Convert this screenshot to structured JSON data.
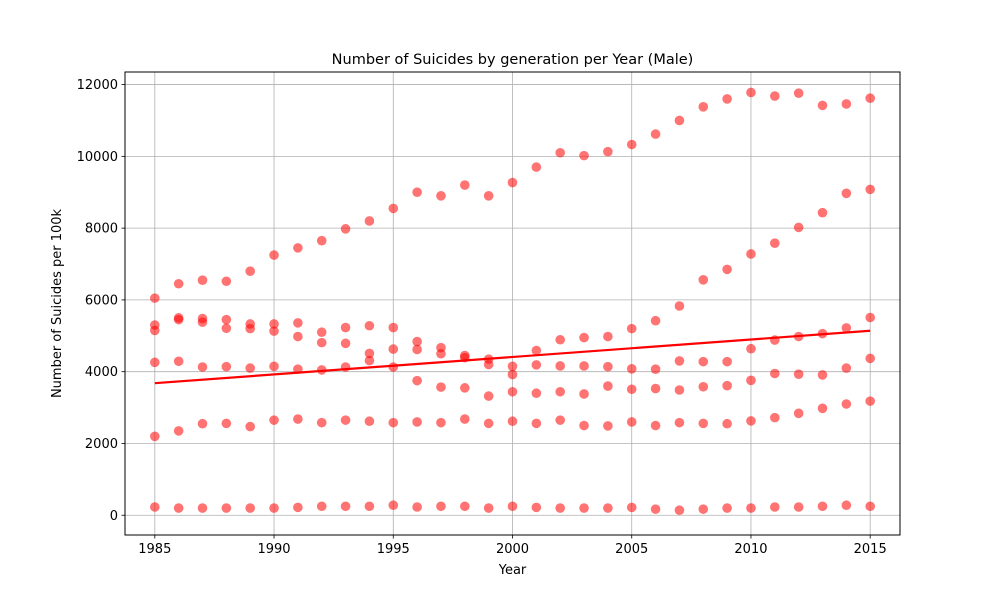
{
  "chart_data": {
    "type": "scatter",
    "title": "Number of Suicides by generation per Year (Male)",
    "xlabel": "Year",
    "ylabel": "Number of Suicides per 100k",
    "xlim": [
      1983.75,
      2016.25
    ],
    "ylim": [
      -550,
      12350
    ],
    "x_ticks": [
      1985,
      1990,
      1995,
      2000,
      2005,
      2010,
      2015
    ],
    "y_ticks": [
      0,
      2000,
      4000,
      6000,
      8000,
      10000,
      12000
    ],
    "grid": true,
    "point_color": "#ff0000",
    "line_color": "#ff0000",
    "x": [
      1985,
      1986,
      1987,
      1988,
      1989,
      1990,
      1991,
      1992,
      1993,
      1994,
      1995,
      1996,
      1997,
      1998,
      1999,
      2000,
      2001,
      2002,
      2003,
      2004,
      2005,
      2006,
      2007,
      2008,
      2009,
      2010,
      2011,
      2012,
      2013,
      2014,
      2015
    ],
    "series": [
      {
        "values": [
          6050,
          6450,
          6550,
          6520,
          6800,
          7250,
          7450,
          7650,
          7980,
          8200,
          8550,
          9000,
          8900,
          9200,
          8900,
          9270,
          9700,
          10100,
          10020,
          10130,
          10330,
          10620,
          11000,
          11380,
          11600,
          11780,
          11680,
          11760,
          11420,
          11460,
          11620
        ]
      },
      {
        "values": [
          5300,
          5500,
          5480,
          5450,
          5330,
          5330,
          5360,
          5100,
          5230,
          5280,
          5230,
          4840,
          4670,
          4450,
          4200,
          3920,
          4590,
          4890,
          4950,
          4980,
          5200,
          5420,
          5830,
          6560,
          6850,
          7280,
          7580,
          8020,
          8430,
          8970,
          9080
        ]
      },
      {
        "values": [
          5150,
          5450,
          5380,
          5210,
          5200,
          5130,
          4980,
          4810,
          4790,
          4510,
          4630,
          4620,
          4500,
          4390,
          4350,
          4150,
          4190,
          4160,
          4160,
          4140,
          4080,
          4070,
          4300,
          4280,
          4280,
          4640,
          4880,
          4980,
          5060,
          5220,
          5510
        ]
      },
      {
        "values": [
          4260,
          4290,
          4130,
          4140,
          4100,
          4150,
          4070,
          4050,
          4130,
          4310,
          4130,
          3750,
          3570,
          3550,
          3320,
          3440,
          3400,
          3440,
          3380,
          3600,
          3510,
          3530,
          3490,
          3580,
          3610,
          3760,
          3950,
          3930,
          3910,
          4100,
          4370
        ]
      },
      {
        "values": [
          2200,
          2350,
          2550,
          2560,
          2470,
          2650,
          2680,
          2580,
          2650,
          2620,
          2580,
          2600,
          2580,
          2680,
          2560,
          2620,
          2560,
          2650,
          2500,
          2490,
          2600,
          2500,
          2580,
          2560,
          2550,
          2630,
          2720,
          2840,
          2980,
          3100,
          3180
        ]
      },
      {
        "values": [
          230,
          200,
          200,
          200,
          200,
          200,
          220,
          250,
          250,
          250,
          280,
          230,
          250,
          250,
          200,
          250,
          220,
          200,
          200,
          200,
          220,
          170,
          140,
          170,
          200,
          200,
          230,
          230,
          250,
          280,
          250
        ]
      }
    ],
    "trendline": {
      "x": [
        1985,
        2015
      ],
      "y": [
        3680,
        5140
      ]
    }
  }
}
